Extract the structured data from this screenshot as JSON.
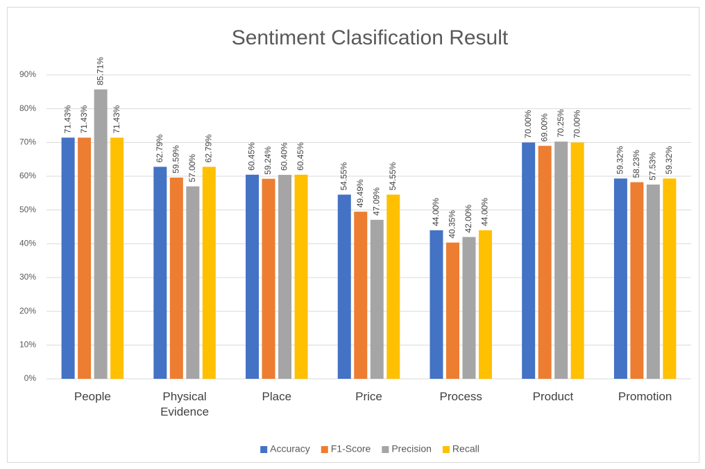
{
  "chart_data": {
    "type": "bar",
    "title": "Sentiment Clasification Result",
    "categories": [
      "People",
      "Physical Evidence",
      "Place",
      "Price",
      "Process",
      "Product",
      "Promotion"
    ],
    "series": [
      {
        "name": "Accuracy",
        "color": "#4472c4",
        "values": [
          71.43,
          62.79,
          60.45,
          54.55,
          44.0,
          70.0,
          59.32
        ],
        "value_labels": [
          "71.43%",
          "62.79%",
          "60.45%",
          "54.55%",
          "44.00%",
          "70.00%",
          "59.32%"
        ]
      },
      {
        "name": "F1-Score",
        "color": "#ed7d31",
        "values": [
          71.43,
          59.59,
          59.24,
          49.49,
          40.35,
          69.0,
          58.23
        ],
        "value_labels": [
          "71.43%",
          "59.59%",
          "59.24%",
          "49.49%",
          "40.35%",
          "69.00%",
          "58.23%"
        ]
      },
      {
        "name": "Precision",
        "color": "#a5a5a5",
        "values": [
          85.71,
          57.0,
          60.4,
          47.09,
          42.0,
          70.25,
          57.53
        ],
        "value_labels": [
          "85.71%",
          "57.00%",
          "60.40%",
          "47.09%",
          "42.00%",
          "70.25%",
          "57.53%"
        ]
      },
      {
        "name": "Recall",
        "color": "#ffc000",
        "values": [
          71.43,
          62.79,
          60.45,
          54.55,
          44.0,
          70.0,
          59.32
        ],
        "value_labels": [
          "71.43%",
          "62.79%",
          "60.45%",
          "54.55%",
          "44.00%",
          "70.00%",
          "59.32%"
        ]
      }
    ],
    "ylim": [
      0,
      90
    ],
    "yticks": [
      {
        "value": 0,
        "label": "0%"
      },
      {
        "value": 10,
        "label": "10%"
      },
      {
        "value": 20,
        "label": "20%"
      },
      {
        "value": 30,
        "label": "30%"
      },
      {
        "value": 40,
        "label": "40%"
      },
      {
        "value": 50,
        "label": "50%"
      },
      {
        "value": 60,
        "label": "60%"
      },
      {
        "value": 70,
        "label": "70%"
      },
      {
        "value": 80,
        "label": "80%"
      },
      {
        "value": 90,
        "label": "90%"
      }
    ],
    "grid": true,
    "legend": "bottom"
  }
}
